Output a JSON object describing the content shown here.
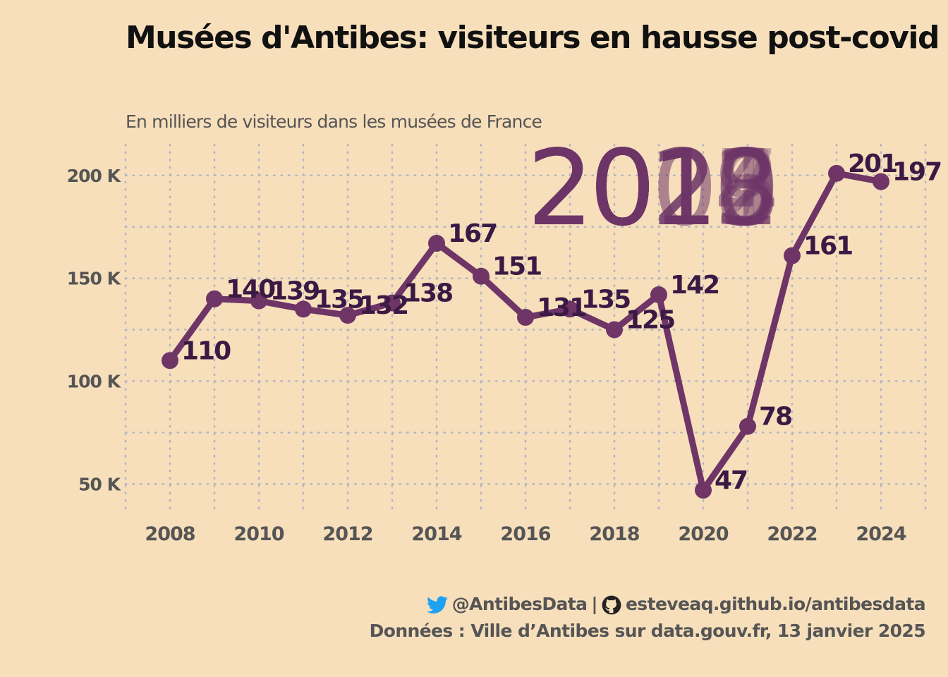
{
  "title": "Musées d'Antibes: visiteurs en hausse post-covid",
  "subtitle": "En milliers de visiteurs dans les musées de France",
  "caption": {
    "twitter_handle": "@AntibesData",
    "separator": "|",
    "github_url": "esteveaq.github.io/antibesdata",
    "source": "Données : Ville d’Antibes sur data.gouv.fr, 13 janvier 2025"
  },
  "colors": {
    "background": "#f7dfbb",
    "line": "#6e3566",
    "label": "#3a1a44",
    "watermark": "#6e3566",
    "grid": "#b3b6c4",
    "twitter": "#1da1f2"
  },
  "chart_data": {
    "type": "line",
    "title": "Musées d'Antibes: visiteurs en hausse post-covid",
    "subtitle": "En milliers de visiteurs dans les musées de France",
    "xlabel": "",
    "ylabel": "",
    "x": [
      2008,
      2009,
      2010,
      2011,
      2012,
      2013,
      2014,
      2015,
      2016,
      2017,
      2018,
      2019,
      2020,
      2021,
      2022,
      2023,
      2024
    ],
    "values": [
      110,
      140,
      139,
      135,
      132,
      138,
      167,
      151,
      131,
      135,
      125,
      142,
      47,
      78,
      161,
      201,
      197
    ],
    "data_labels": [
      "110",
      "140",
      "139",
      "135",
      "132",
      "138",
      "167",
      "151",
      "131",
      "135",
      "125",
      "142",
      "47",
      "78",
      "161",
      "201",
      "197"
    ],
    "x_ticks": [
      "2008",
      "2010",
      "2012",
      "2014",
      "2016",
      "2018",
      "2020",
      "2022",
      "2024"
    ],
    "y_ticks": [
      50,
      100,
      150,
      200
    ],
    "y_tick_labels": [
      "50 K",
      "100 K",
      "150 K",
      "200 K"
    ],
    "xlim": [
      2007,
      2025
    ],
    "ylim": [
      35,
      215
    ],
    "grid": true,
    "legend": "none",
    "watermark_labels": [
      "2008",
      "2009",
      "2010",
      "2011",
      "2012",
      "2013",
      "2014",
      "2015",
      "2016",
      "2017",
      "2018",
      "2019",
      "2020",
      "2021",
      "2022",
      "2023",
      "2024"
    ]
  }
}
